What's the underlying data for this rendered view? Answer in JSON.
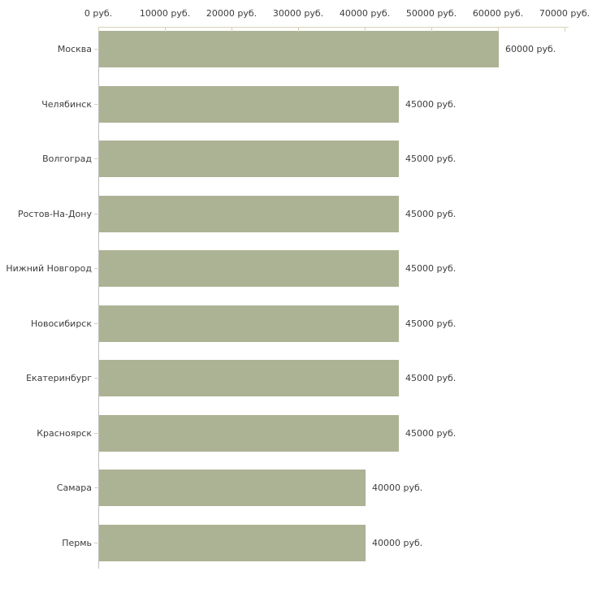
{
  "chart_data": {
    "type": "bar",
    "orientation": "horizontal",
    "categories": [
      "Москва",
      "Челябинск",
      "Волгоград",
      "Ростов-На-Дону",
      "Нижний Новгород",
      "Новосибирск",
      "Екатеринбург",
      "Красноярск",
      "Самара",
      "Пермь"
    ],
    "values": [
      60000,
      45000,
      45000,
      45000,
      45000,
      45000,
      45000,
      45000,
      40000,
      40000
    ],
    "value_labels": [
      "60000 руб.",
      "45000 руб.",
      "45000 руб.",
      "45000 руб.",
      "45000 руб.",
      "45000 руб.",
      "45000 руб.",
      "45000 руб.",
      "40000 руб.",
      "40000 руб."
    ],
    "x_tick_values": [
      0,
      10000,
      20000,
      30000,
      40000,
      50000,
      60000,
      70000
    ],
    "x_tick_labels": [
      "0 руб.",
      "10000 руб.",
      "20000 руб.",
      "30000 руб.",
      "40000 руб.",
      "50000 руб.",
      "60000 руб.",
      "70000 руб."
    ],
    "xlim": [
      0,
      70000
    ],
    "unit": "руб.",
    "grid": false,
    "legend": null,
    "xlabel": "",
    "ylabel": "",
    "colors": {
      "bar": "#acb294",
      "x_axis_line": "#d6d3b8",
      "x_tick": "#d6d3b8",
      "y_tick": "#d6d3b8",
      "y_axis_line": "#c0c0c0",
      "text": "#3d3d3d",
      "background": "#ffffff"
    }
  }
}
